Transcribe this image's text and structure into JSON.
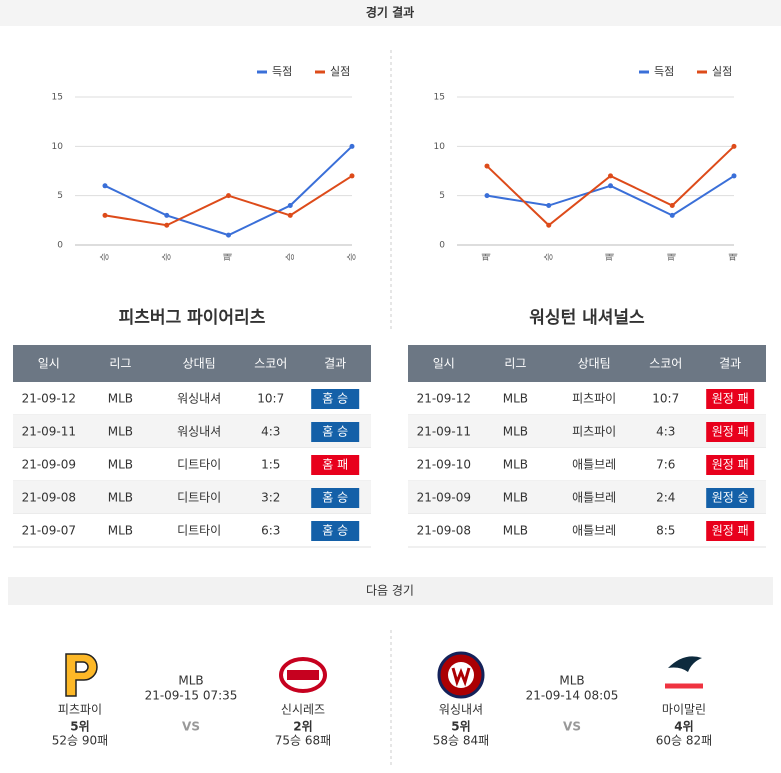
{
  "header": {
    "title": "경기 결과"
  },
  "chart_data": [
    {
      "type": "line",
      "categories": [
        "승",
        "승",
        "패",
        "승",
        "승"
      ],
      "series": [
        {
          "name": "득점",
          "color": "#3a6fd8",
          "values": [
            6,
            3,
            1,
            4,
            10
          ]
        },
        {
          "name": "실점",
          "color": "#dd4b1a",
          "values": [
            3,
            2,
            5,
            3,
            7
          ]
        }
      ],
      "ylim": [
        0,
        15
      ],
      "yticks": [
        0,
        5,
        10,
        15
      ],
      "grid": true,
      "legend": "top-right"
    },
    {
      "type": "line",
      "categories": [
        "패",
        "승",
        "패",
        "패",
        "패"
      ],
      "series": [
        {
          "name": "득점",
          "color": "#3a6fd8",
          "values": [
            5,
            4,
            6,
            3,
            7
          ]
        },
        {
          "name": "실점",
          "color": "#dd4b1a",
          "values": [
            8,
            2,
            7,
            4,
            10
          ]
        }
      ],
      "ylim": [
        0,
        15
      ],
      "yticks": [
        0,
        5,
        10,
        15
      ],
      "grid": true,
      "legend": "top-right"
    }
  ],
  "tables": [
    {
      "team": "피츠버그 파이어리츠",
      "headers": [
        "일시",
        "리그",
        "상대팀",
        "스코어",
        "결과"
      ],
      "rows": [
        [
          "21-09-12",
          "MLB",
          "워싱내셔",
          "10:7",
          "홈 승"
        ],
        [
          "21-09-11",
          "MLB",
          "워싱내셔",
          "4:3",
          "홈 승"
        ],
        [
          "21-09-09",
          "MLB",
          "디트타이",
          "1:5",
          "홈 패"
        ],
        [
          "21-09-08",
          "MLB",
          "디트타이",
          "3:2",
          "홈 승"
        ],
        [
          "21-09-07",
          "MLB",
          "디트타이",
          "6:3",
          "홈 승"
        ]
      ],
      "result_colors": [
        "#1460a8",
        "#1460a8",
        "#e8001c",
        "#1460a8",
        "#1460a8"
      ]
    },
    {
      "team": "워싱턴 내셔널스",
      "headers": [
        "일시",
        "리그",
        "상대팀",
        "스코어",
        "결과"
      ],
      "rows": [
        [
          "21-09-12",
          "MLB",
          "피츠파이",
          "10:7",
          "원정 패"
        ],
        [
          "21-09-11",
          "MLB",
          "피츠파이",
          "4:3",
          "원정 패"
        ],
        [
          "21-09-10",
          "MLB",
          "애틀브레",
          "7:6",
          "원정 패"
        ],
        [
          "21-09-09",
          "MLB",
          "애틀브레",
          "2:4",
          "원정 승"
        ],
        [
          "21-09-08",
          "MLB",
          "애틀브레",
          "8:5",
          "원정 패"
        ]
      ],
      "result_colors": [
        "#e8001c",
        "#e8001c",
        "#e8001c",
        "#1460a8",
        "#e8001c"
      ]
    }
  ],
  "next": {
    "title": "다음 경기",
    "games": [
      {
        "home": {
          "name": "피츠파이",
          "rank": "5위",
          "record": "52승 90패"
        },
        "league": "MLB",
        "datetime": "21-09-15 07:35",
        "vs": "VS",
        "away": {
          "name": "신시레즈",
          "rank": "2위",
          "record": "75승 68패"
        }
      },
      {
        "home": {
          "name": "워싱내셔",
          "rank": "5위",
          "record": "58승 84패"
        },
        "league": "MLB",
        "datetime": "21-09-14 08:05",
        "vs": "VS",
        "away": {
          "name": "마이말린",
          "rank": "4위",
          "record": "60승 82패"
        }
      }
    ]
  }
}
